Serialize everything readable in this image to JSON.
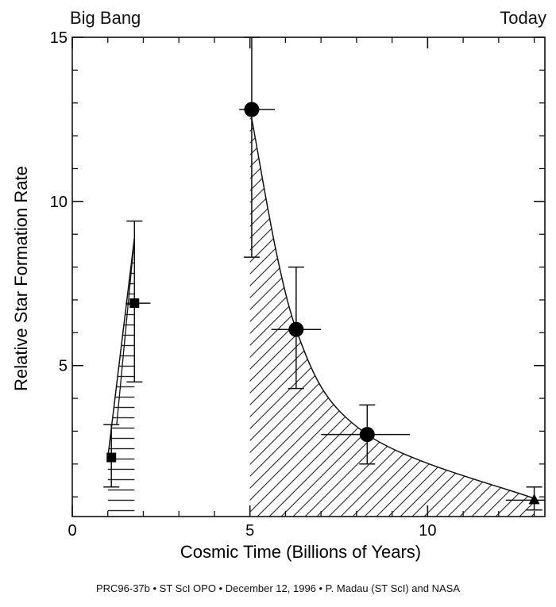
{
  "chart_data": {
    "type": "scatter",
    "title": "",
    "xlabel": "Cosmic Time (Billions of Years)",
    "ylabel": "Relative Star Formation Rate",
    "xlim": [
      0,
      13.3
    ],
    "ylim": [
      0.4,
      15
    ],
    "xticks": [
      0,
      5,
      10
    ],
    "yticks": [
      5,
      10,
      15
    ],
    "corner_labels": {
      "left": "Big Bang",
      "right": "Today"
    },
    "grid": false,
    "legend": "none",
    "series": [
      {
        "marker": "square",
        "points": [
          {
            "x": 1.1,
            "y": 2.2,
            "y_err_low": 1.3,
            "y_err_high": 3.2,
            "x_err_low": 1.1,
            "x_err_high": 1.1
          },
          {
            "x": 1.75,
            "y": 6.9,
            "y_err_low": 4.5,
            "y_err_high": 9.4,
            "x_err_low": 1.5,
            "x_err_high": 2.2
          }
        ]
      },
      {
        "marker": "circle",
        "points": [
          {
            "x": 5.05,
            "y": 12.8,
            "y_err_low": 8.3,
            "y_err_high": 15.0,
            "x_err_low": 4.7,
            "x_err_high": 5.7
          },
          {
            "x": 6.3,
            "y": 6.1,
            "y_err_low": 4.3,
            "y_err_high": 8.0,
            "x_err_low": 5.6,
            "x_err_high": 7.0
          },
          {
            "x": 8.3,
            "y": 2.9,
            "y_err_low": 2.0,
            "y_err_high": 3.8,
            "x_err_low": 7.0,
            "x_err_high": 9.5
          }
        ]
      },
      {
        "marker": "triangle",
        "points": [
          {
            "x": 13.0,
            "y": 0.9,
            "y_err_low": 0.6,
            "y_err_high": 1.3,
            "x_err_low": 12.2,
            "x_err_high": 13.3
          }
        ]
      }
    ],
    "shaded_regions": [
      {
        "style": "horizontal-hatch",
        "x_start": 1.0,
        "x_end": 1.75,
        "y_start": 0.4,
        "peak": 8.9
      },
      {
        "style": "diagonal-hatch",
        "x_start": 5.0,
        "x_end": 13.0,
        "curve": [
          [
            5.0,
            12.8
          ],
          [
            6.3,
            6.1
          ],
          [
            8.3,
            2.9
          ],
          [
            13.0,
            0.95
          ]
        ]
      }
    ]
  },
  "credit": "PRC96-37b • ST ScI OPO • December 12, 1996 • P. Madau (ST ScI) and NASA"
}
